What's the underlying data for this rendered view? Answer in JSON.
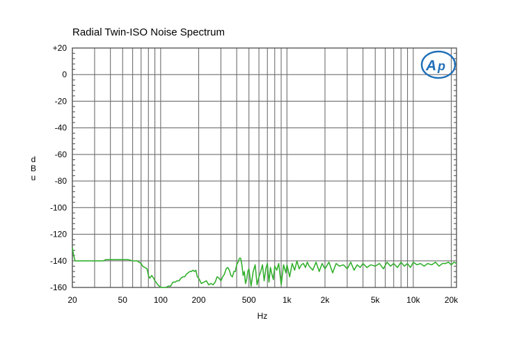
{
  "chart_data": {
    "type": "line",
    "title": "Radial Twin-ISO Noise Spectrum",
    "xlabel": "Hz",
    "ylabel": "dBu",
    "x_scale": "log",
    "xlim": [
      20,
      22000
    ],
    "ylim": [
      -160,
      20
    ],
    "grid": true,
    "x_major_gridlines": [
      20,
      30,
      40,
      50,
      60,
      70,
      80,
      90,
      100,
      200,
      300,
      400,
      500,
      600,
      700,
      800,
      900,
      1000,
      2000,
      3000,
      4000,
      5000,
      6000,
      7000,
      8000,
      9000,
      10000,
      20000
    ],
    "x_ticks": [
      {
        "value": 20,
        "label": "20"
      },
      {
        "value": 50,
        "label": "50"
      },
      {
        "value": 100,
        "label": "100"
      },
      {
        "value": 200,
        "label": "200"
      },
      {
        "value": 500,
        "label": "500"
      },
      {
        "value": 1000,
        "label": "1k"
      },
      {
        "value": 2000,
        "label": "2k"
      },
      {
        "value": 5000,
        "label": "5k"
      },
      {
        "value": 10000,
        "label": "10k"
      },
      {
        "value": 20000,
        "label": "20k"
      }
    ],
    "y_ticks": [
      {
        "value": 20,
        "label": "+20"
      },
      {
        "value": 0,
        "label": "0"
      },
      {
        "value": -20,
        "label": "-20"
      },
      {
        "value": -40,
        "label": "-40"
      },
      {
        "value": -60,
        "label": "-60"
      },
      {
        "value": -80,
        "label": "-80"
      },
      {
        "value": -100,
        "label": "-100"
      },
      {
        "value": -120,
        "label": "-120"
      },
      {
        "value": -140,
        "label": "-140"
      },
      {
        "value": -160,
        "label": "-160"
      }
    ],
    "series": [
      {
        "color": "#33b02e",
        "x": [
          20,
          20.5,
          21,
          22,
          25,
          30,
          35,
          37,
          40,
          45,
          50,
          55,
          60,
          65,
          70,
          72,
          75,
          78,
          80,
          82,
          85,
          88,
          90,
          92,
          95,
          100,
          110,
          115,
          120,
          125,
          130,
          135,
          140,
          145,
          150,
          155,
          160,
          165,
          170,
          175,
          180,
          185,
          190,
          195,
          200,
          210,
          220,
          230,
          240,
          250,
          260,
          270,
          280,
          290,
          300,
          310,
          320,
          330,
          340,
          350,
          360,
          370,
          380,
          390,
          400,
          410,
          420,
          430,
          440,
          450,
          460,
          470,
          480,
          490,
          500,
          520,
          540,
          560,
          580,
          600,
          620,
          640,
          660,
          680,
          700,
          720,
          740,
          760,
          780,
          800,
          830,
          860,
          900,
          940,
          980,
          1000,
          1050,
          1100,
          1150,
          1200,
          1250,
          1300,
          1350,
          1400,
          1450,
          1500,
          1600,
          1700,
          1800,
          1900,
          2000,
          2150,
          2300,
          2450,
          2600,
          2800,
          3000,
          3200,
          3400,
          3600,
          3800,
          4000,
          4300,
          4600,
          5000,
          5400,
          5800,
          6200,
          6600,
          7000,
          7500,
          8000,
          8500,
          9000,
          9500,
          10000,
          10700,
          11400,
          12200,
          13000,
          14000,
          15000,
          16000,
          17000,
          18000,
          19000,
          20000,
          21000,
          22000
        ],
        "y": [
          -130,
          -136,
          -140,
          -140,
          -140,
          -140,
          -140,
          -139,
          -139,
          -139,
          -139,
          -139,
          -140,
          -140,
          -142,
          -144,
          -145,
          -146,
          -151,
          -153,
          -151,
          -153,
          -155,
          -156,
          -158,
          -160,
          -160,
          -159,
          -159,
          -156,
          -156,
          -155,
          -155,
          -153,
          -152,
          -152,
          -150,
          -149,
          -148,
          -148,
          -147,
          -148,
          -147,
          -152,
          -153,
          -157,
          -156,
          -155,
          -158,
          -157,
          -158,
          -156,
          -152,
          -153,
          -155,
          -152,
          -150,
          -146,
          -145,
          -147,
          -151,
          -152,
          -148,
          -148,
          -143,
          -141,
          -138,
          -138,
          -143,
          -151,
          -148,
          -157,
          -154,
          -148,
          -146,
          -159,
          -148,
          -143,
          -158,
          -152,
          -148,
          -143,
          -155,
          -146,
          -142,
          -156,
          -145,
          -150,
          -154,
          -144,
          -147,
          -142,
          -158,
          -143,
          -149,
          -143,
          -152,
          -142,
          -147,
          -140,
          -146,
          -143,
          -142,
          -145,
          -141,
          -144,
          -147,
          -141,
          -148,
          -142,
          -146,
          -141,
          -149,
          -142,
          -144,
          -143,
          -146,
          -141,
          -147,
          -143,
          -145,
          -142,
          -145,
          -143,
          -144,
          -142,
          -146,
          -141,
          -144,
          -142,
          -145,
          -141,
          -144,
          -142,
          -145,
          -141,
          -143,
          -142,
          -144,
          -142,
          -143,
          -141,
          -144,
          -142,
          -142,
          -141,
          -143,
          -141,
          -142
        ]
      }
    ]
  }
}
